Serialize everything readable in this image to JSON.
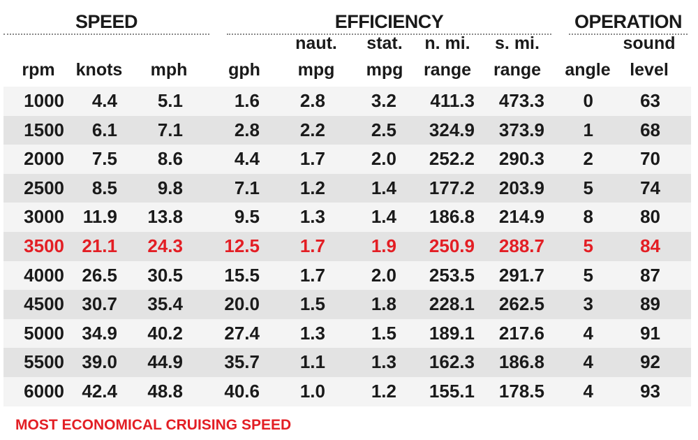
{
  "groups": [
    {
      "title": "SPEED"
    },
    {
      "title": "EFFICIENCY"
    },
    {
      "title": "OPERATION"
    }
  ],
  "table": {
    "columns": [
      [
        "rpm"
      ],
      [
        "knots"
      ],
      [
        "mph"
      ],
      [
        "gph"
      ],
      [
        "naut.",
        "mpg"
      ],
      [
        "stat.",
        "mpg"
      ],
      [
        "n. mi.",
        "range"
      ],
      [
        "s. mi.",
        "range"
      ],
      [
        "angle"
      ],
      [
        "sound",
        "level"
      ]
    ],
    "rows": [
      {
        "cells": [
          "1000",
          "4.4",
          "5.1",
          "1.6",
          "2.8",
          "3.2",
          "411.3",
          "473.3",
          "0",
          "63"
        ]
      },
      {
        "cells": [
          "1500",
          "6.1",
          "7.1",
          "2.8",
          "2.2",
          "2.5",
          "324.9",
          "373.9",
          "1",
          "68"
        ]
      },
      {
        "cells": [
          "2000",
          "7.5",
          "8.6",
          "4.4",
          "1.7",
          "2.0",
          "252.2",
          "290.3",
          "2",
          "70"
        ]
      },
      {
        "cells": [
          "2500",
          "8.5",
          "9.8",
          "7.1",
          "1.2",
          "1.4",
          "177.2",
          "203.9",
          "5",
          "74"
        ]
      },
      {
        "cells": [
          "3000",
          "11.9",
          "13.8",
          "9.5",
          "1.3",
          "1.4",
          "186.8",
          "214.9",
          "8",
          "80"
        ]
      },
      {
        "cells": [
          "3500",
          "21.1",
          "24.3",
          "12.5",
          "1.7",
          "1.9",
          "250.9",
          "288.7",
          "5",
          "84"
        ],
        "highlight": true
      },
      {
        "cells": [
          "4000",
          "26.5",
          "30.5",
          "15.5",
          "1.7",
          "2.0",
          "253.5",
          "291.7",
          "5",
          "87"
        ]
      },
      {
        "cells": [
          "4500",
          "30.7",
          "35.4",
          "20.0",
          "1.5",
          "1.8",
          "228.1",
          "262.5",
          "3",
          "89"
        ]
      },
      {
        "cells": [
          "5000",
          "34.9",
          "40.2",
          "27.4",
          "1.3",
          "1.5",
          "189.1",
          "217.6",
          "4",
          "91"
        ]
      },
      {
        "cells": [
          "5500",
          "39.0",
          "44.9",
          "35.7",
          "1.1",
          "1.3",
          "162.3",
          "186.8",
          "4",
          "92"
        ]
      },
      {
        "cells": [
          "6000",
          "42.4",
          "48.8",
          "40.6",
          "1.0",
          "1.2",
          "155.1",
          "178.5",
          "4",
          "93"
        ]
      }
    ]
  },
  "note": "MOST ECONOMICAL CRUISING SPEED"
}
